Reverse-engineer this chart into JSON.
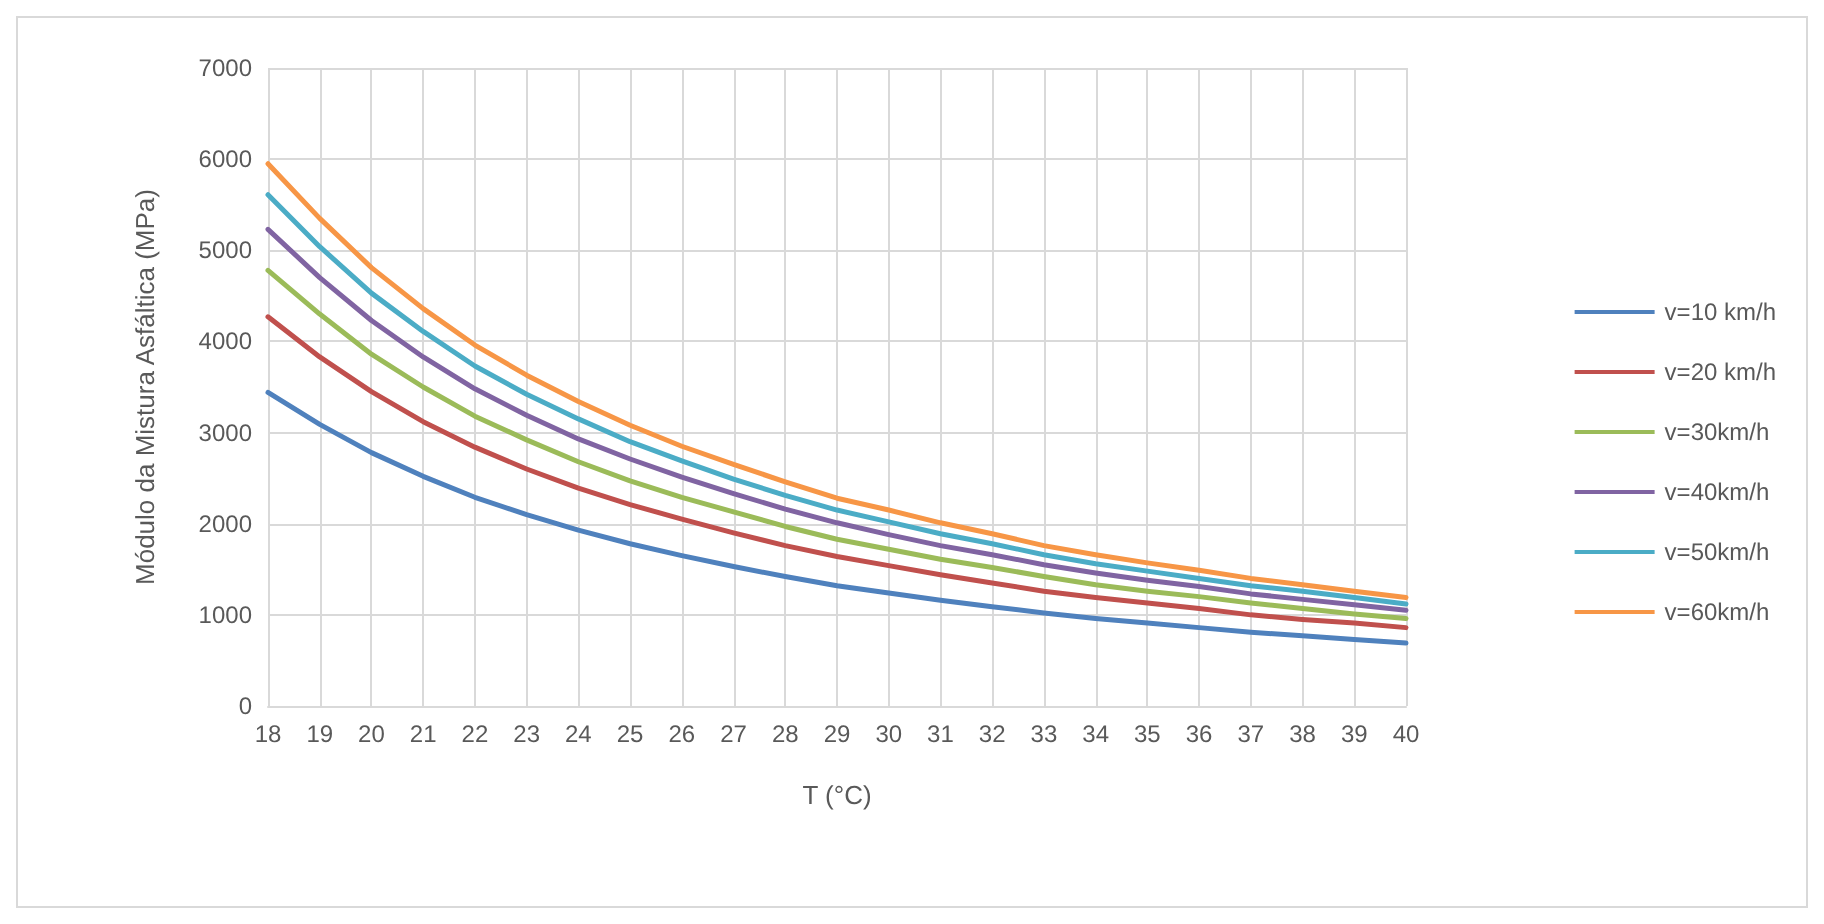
{
  "chart_data": {
    "type": "line",
    "xlabel": "T (°C)",
    "ylabel": "Módulo da Mistura Asfáltica (MPa)",
    "categories": [
      "18",
      "19",
      "20",
      "21",
      "22",
      "23",
      "24",
      "25",
      "26",
      "27",
      "28",
      "29",
      "30",
      "31",
      "32",
      "33",
      "34",
      "35",
      "36",
      "37",
      "38",
      "39",
      "40"
    ],
    "ylim": [
      0,
      7000
    ],
    "yticks": [
      0,
      1000,
      2000,
      3000,
      4000,
      5000,
      6000,
      7000
    ],
    "grid": true,
    "legend": "right",
    "marker": "none",
    "line_style": "solid",
    "series": [
      {
        "name": "v=10 km/h",
        "color": "#4f81bd",
        "values": [
          3440,
          3090,
          2780,
          2520,
          2290,
          2100,
          1930,
          1780,
          1650,
          1530,
          1420,
          1320,
          1240,
          1160,
          1090,
          1020,
          960,
          910,
          860,
          810,
          770,
          730,
          690
        ]
      },
      {
        "name": "v=20 km/h",
        "color": "#c0504d",
        "values": [
          4270,
          3830,
          3450,
          3120,
          2840,
          2600,
          2390,
          2210,
          2050,
          1900,
          1760,
          1640,
          1540,
          1440,
          1350,
          1260,
          1190,
          1130,
          1070,
          1000,
          950,
          910,
          860
        ]
      },
      {
        "name": "v=30km/h",
        "color": "#9bbb59",
        "values": [
          4780,
          4300,
          3860,
          3500,
          3180,
          2920,
          2680,
          2470,
          2290,
          2130,
          1970,
          1830,
          1720,
          1610,
          1520,
          1420,
          1330,
          1260,
          1200,
          1130,
          1070,
          1010,
          960
        ]
      },
      {
        "name": "v=40km/h",
        "color": "#8064a2",
        "values": [
          5230,
          4700,
          4230,
          3830,
          3480,
          3190,
          2930,
          2710,
          2510,
          2330,
          2160,
          2010,
          1880,
          1760,
          1660,
          1550,
          1460,
          1380,
          1310,
          1230,
          1170,
          1110,
          1050
        ]
      },
      {
        "name": "v=50km/h",
        "color": "#4bacc6",
        "values": [
          5610,
          5040,
          4530,
          4110,
          3730,
          3420,
          3150,
          2900,
          2690,
          2490,
          2310,
          2150,
          2020,
          1890,
          1780,
          1660,
          1560,
          1480,
          1400,
          1320,
          1260,
          1190,
          1120
        ]
      },
      {
        "name": "v=60km/h",
        "color": "#f79646",
        "values": [
          5950,
          5350,
          4810,
          4360,
          3960,
          3630,
          3340,
          3080,
          2850,
          2650,
          2460,
          2280,
          2150,
          2010,
          1890,
          1760,
          1660,
          1570,
          1490,
          1400,
          1330,
          1260,
          1190
        ]
      }
    ]
  }
}
